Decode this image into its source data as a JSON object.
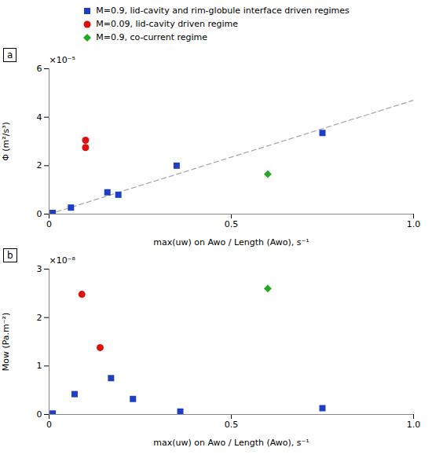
{
  "chart_data": [
    {
      "type": "scatter",
      "title": "a",
      "xlabel": "max(uw) on Awo / Length (Awo), s⁻¹",
      "ylabel": "Φ (m²/s³)",
      "annotations": [
        "×10⁻⁵"
      ],
      "xlim": [
        0,
        1.0
      ],
      "ylim": [
        0,
        6e-05
      ],
      "xticks": [
        0,
        0.5,
        {
          "value": 1.0,
          "label": "1.0"
        }
      ],
      "yticks": [
        0,
        {
          "value": 2e-05,
          "label": "2"
        },
        {
          "value": 4e-05,
          "label": "4"
        },
        {
          "value": 6e-05,
          "label": "6"
        }
      ],
      "legend": "top",
      "series": [
        {
          "type": "line",
          "line_style": "dashed",
          "color": "#aaaaaa",
          "x": [
            0.0,
            1.0
          ],
          "values": [
            0.0,
            4.7e-05
          ]
        },
        {
          "name": "M=0.9, lid-cavity and rim-globule interface driven regimes",
          "marker": "square",
          "color": "#1e3ec8",
          "x": [
            0.01,
            0.06,
            0.16,
            0.19,
            0.35,
            0.75
          ],
          "values": [
            5e-07,
            2.7e-06,
            9e-06,
            8e-06,
            2e-05,
            3.35e-05
          ]
        },
        {
          "name": "M=0.09, lid-cavity driven regime",
          "marker": "circle",
          "color": "#dd1010",
          "x": [
            0.1,
            0.1
          ],
          "values": [
            3.05e-05,
            2.75e-05
          ]
        },
        {
          "name": "M=0.9, co-current regime",
          "marker": "diamond",
          "color": "#22aa22",
          "x": [
            0.6
          ],
          "values": [
            1.65e-05
          ]
        }
      ]
    },
    {
      "type": "scatter",
      "title": "b",
      "xlabel": "max(uw) on Awo / Length (Awo), s⁻¹",
      "ylabel": "Mow (Pa.m⁻²)",
      "annotations": [
        "×10⁻⁸"
      ],
      "xlim": [
        0,
        1.0
      ],
      "ylim": [
        0,
        3e-08
      ],
      "xticks": [
        0,
        0.5,
        {
          "value": 1.0,
          "label": "1.0"
        }
      ],
      "yticks": [
        0,
        {
          "value": 1e-08,
          "label": "1"
        },
        {
          "value": 2e-08,
          "label": "2"
        },
        {
          "value": 3e-08,
          "label": "3"
        }
      ],
      "series": [
        {
          "name": "M=0.9, lid-cavity and rim-globule interface driven regimes",
          "marker": "square",
          "color": "#1e3ec8",
          "x": [
            0.01,
            0.07,
            0.17,
            0.23,
            0.36,
            0.75
          ],
          "values": [
            2e-10,
            4.2e-09,
            7.5e-09,
            3.2e-09,
            6e-10,
            1.3e-09
          ]
        },
        {
          "name": "M=0.09, lid-cavity driven regime",
          "marker": "circle",
          "color": "#dd1010",
          "x": [
            0.09,
            0.14
          ],
          "values": [
            2.48e-08,
            1.38e-08
          ]
        },
        {
          "name": "M=0.9, co-current regime",
          "marker": "diamond",
          "color": "#22aa22",
          "x": [
            0.6
          ],
          "values": [
            2.6e-08
          ]
        }
      ]
    }
  ]
}
